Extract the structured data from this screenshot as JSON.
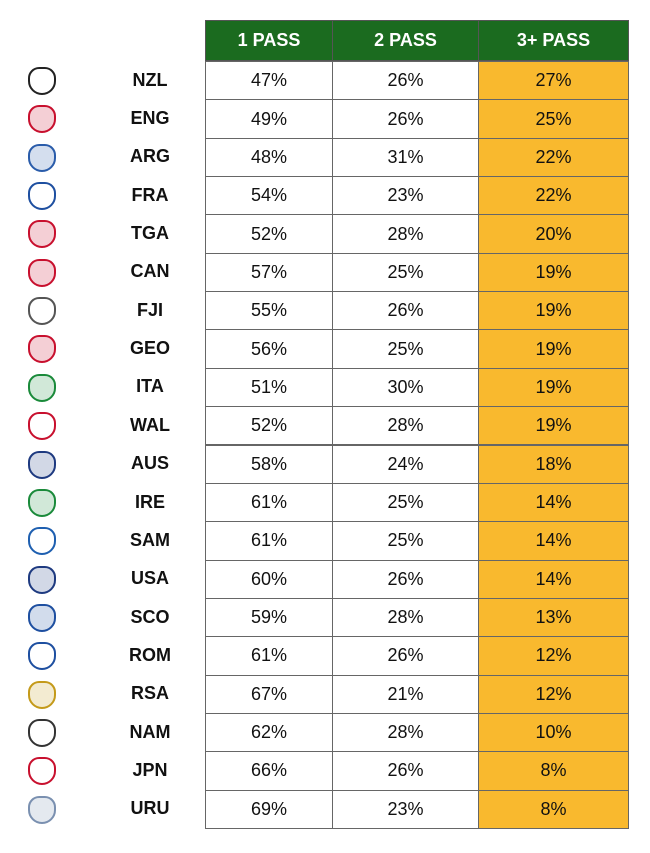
{
  "table": {
    "header": [
      "1 PASS",
      "2 PASS",
      "3+ PASS"
    ],
    "rows": [
      [
        "NZL",
        "47%",
        "26%",
        "27%"
      ],
      [
        "ENG",
        "49%",
        "26%",
        "25%"
      ],
      [
        "ARG",
        "48%",
        "31%",
        "22%"
      ],
      [
        "FRA",
        "54%",
        "23%",
        "22%"
      ],
      [
        "TGA",
        "52%",
        "28%",
        "20%"
      ],
      [
        "CAN",
        "57%",
        "25%",
        "19%"
      ],
      [
        "FJI",
        "55%",
        "26%",
        "19%"
      ],
      [
        "GEO",
        "56%",
        "25%",
        "19%"
      ],
      [
        "ITA",
        "51%",
        "30%",
        "19%"
      ],
      [
        "WAL",
        "52%",
        "28%",
        "19%"
      ],
      [
        "AUS",
        "58%",
        "24%",
        "18%"
      ],
      [
        "IRE",
        "61%",
        "25%",
        "14%"
      ],
      [
        "SAM",
        "61%",
        "25%",
        "14%"
      ],
      [
        "USA",
        "60%",
        "26%",
        "14%"
      ],
      [
        "SCO",
        "59%",
        "28%",
        "13%"
      ],
      [
        "ROM",
        "61%",
        "26%",
        "12%"
      ],
      [
        "RSA",
        "67%",
        "21%",
        "12%"
      ],
      [
        "NAM",
        "62%",
        "28%",
        "10%"
      ],
      [
        "JPN",
        "66%",
        "26%",
        "8%"
      ],
      [
        "URU",
        "69%",
        "23%",
        "8%"
      ]
    ]
  }
}
